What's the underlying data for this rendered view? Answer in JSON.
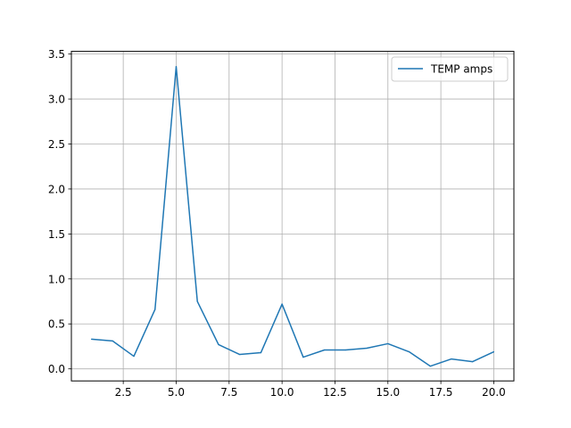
{
  "chart_data": {
    "type": "line",
    "title": "",
    "xlabel": "",
    "ylabel": "",
    "xlim": [
      0.05,
      20.95
    ],
    "ylim": [
      -0.134,
      3.53
    ],
    "grid": true,
    "legend_position": "top-right",
    "x_ticks": [
      2.5,
      5.0,
      7.5,
      10.0,
      12.5,
      15.0,
      17.5,
      20.0
    ],
    "x_tick_labels": [
      "2.5",
      "5.0",
      "7.5",
      "10.0",
      "12.5",
      "15.0",
      "17.5",
      "20.0"
    ],
    "y_ticks": [
      0.0,
      0.5,
      1.0,
      1.5,
      2.0,
      2.5,
      3.0,
      3.5
    ],
    "y_tick_labels": [
      "0.0",
      "0.5",
      "1.0",
      "1.5",
      "2.0",
      "2.5",
      "3.0",
      "3.5"
    ],
    "series": [
      {
        "name": "TEMP amps",
        "color": "#1f77b4",
        "x": [
          1,
          2,
          3,
          4,
          5,
          6,
          7,
          8,
          9,
          10,
          11,
          12,
          13,
          14,
          15,
          16,
          17,
          18,
          19,
          20
        ],
        "y": [
          0.33,
          0.31,
          0.14,
          0.66,
          3.36,
          0.75,
          0.27,
          0.16,
          0.18,
          0.72,
          0.13,
          0.21,
          0.21,
          0.23,
          0.28,
          0.19,
          0.03,
          0.11,
          0.08,
          0.19
        ]
      }
    ]
  }
}
